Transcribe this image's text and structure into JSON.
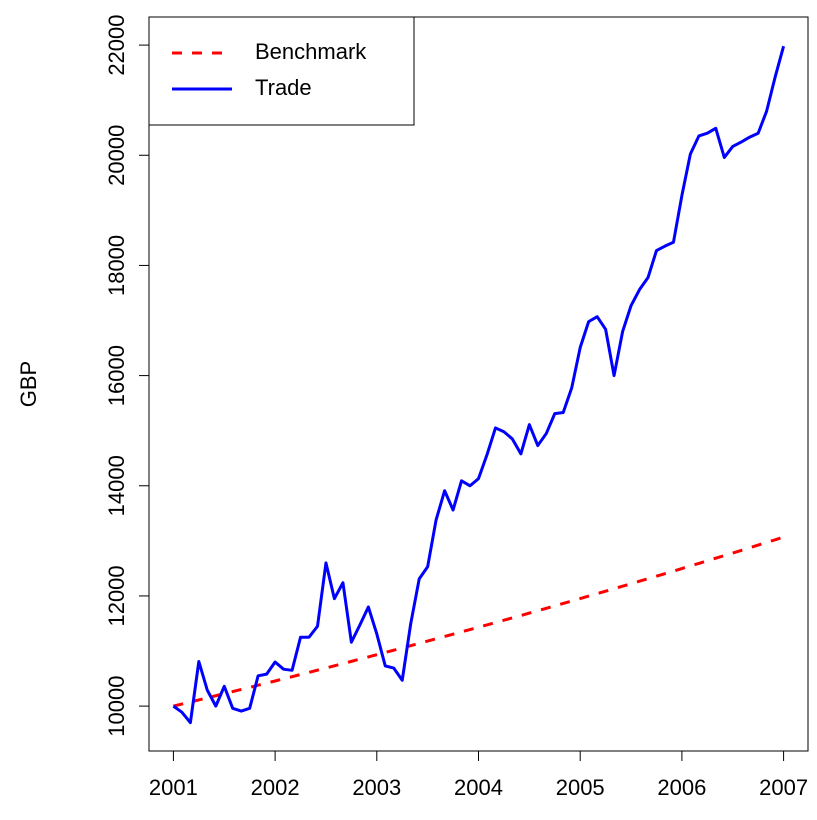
{
  "chart_data": {
    "type": "line",
    "ylabel": "GBP",
    "x": [
      2001,
      2001.083,
      2001.167,
      2001.25,
      2001.333,
      2001.417,
      2001.5,
      2001.583,
      2001.667,
      2001.75,
      2001.833,
      2001.917,
      2002,
      2002.083,
      2002.167,
      2002.25,
      2002.333,
      2002.417,
      2002.5,
      2002.583,
      2002.667,
      2002.75,
      2002.833,
      2002.917,
      2003,
      2003.083,
      2003.167,
      2003.25,
      2003.333,
      2003.417,
      2003.5,
      2003.583,
      2003.667,
      2003.75,
      2003.833,
      2003.917,
      2004,
      2004.083,
      2004.167,
      2004.25,
      2004.333,
      2004.417,
      2004.5,
      2004.583,
      2004.667,
      2004.75,
      2004.833,
      2004.917,
      2005,
      2005.083,
      2005.167,
      2005.25,
      2005.333,
      2005.417,
      2005.5,
      2005.583,
      2005.667,
      2005.75,
      2005.833,
      2005.917,
      2006,
      2006.083,
      2006.167,
      2006.25,
      2006.333,
      2006.417,
      2006.5,
      2006.583,
      2006.667,
      2006.75,
      2006.833,
      2006.917,
      2007
    ],
    "series": [
      {
        "name": "Benchmark",
        "color": "#ff0000",
        "line_style": "dashed",
        "values": [
          10000,
          10037,
          10075,
          10112,
          10150,
          10188,
          10226,
          10264,
          10302,
          10340,
          10379,
          10418,
          10456,
          10495,
          10534,
          10574,
          10613,
          10653,
          10692,
          10732,
          10772,
          10812,
          10853,
          10893,
          10934,
          10974,
          11015,
          11056,
          11097,
          11139,
          11180,
          11222,
          11264,
          11306,
          11348,
          11390,
          11431,
          11474,
          11516,
          11559,
          11602,
          11645,
          11689,
          11732,
          11776,
          11820,
          11864,
          11908,
          11953,
          11997,
          12042,
          12087,
          12132,
          12177,
          12222,
          12268,
          12313,
          12359,
          12405,
          12451,
          12498,
          12544,
          12591,
          12638,
          12685,
          12732,
          12779,
          12827,
          12875,
          12923,
          12971,
          13019,
          13068
        ]
      },
      {
        "name": "Trade",
        "color": "#0000ff",
        "line_style": "solid",
        "values": [
          10000,
          9890,
          9700,
          10810,
          10290,
          10000,
          10360,
          9960,
          9910,
          9960,
          10550,
          10580,
          10800,
          10670,
          10650,
          11250,
          11250,
          11450,
          12600,
          11950,
          12240,
          11160,
          11470,
          11800,
          11310,
          10730,
          10690,
          10470,
          11490,
          12310,
          12530,
          13380,
          13910,
          13560,
          14090,
          14000,
          14130,
          14560,
          15050,
          14980,
          14850,
          14580,
          15110,
          14730,
          14950,
          15310,
          15330,
          15780,
          16510,
          16980,
          17070,
          16840,
          16000,
          16800,
          17270,
          17560,
          17780,
          18270,
          18350,
          18420,
          19270,
          20020,
          20350,
          20400,
          20490,
          19960,
          20160,
          20240,
          20330,
          20400,
          20800,
          21420,
          21980
        ]
      }
    ],
    "xlim": [
      2000.76,
      2007.24
    ],
    "xticks": [
      2001,
      2002,
      2003,
      2004,
      2005,
      2006,
      2007
    ],
    "ylim": [
      9185,
      22510
    ],
    "yticks": [
      10000,
      12000,
      14000,
      16000,
      18000,
      20000,
      22000
    ],
    "legend": "top-left",
    "grid": false
  }
}
